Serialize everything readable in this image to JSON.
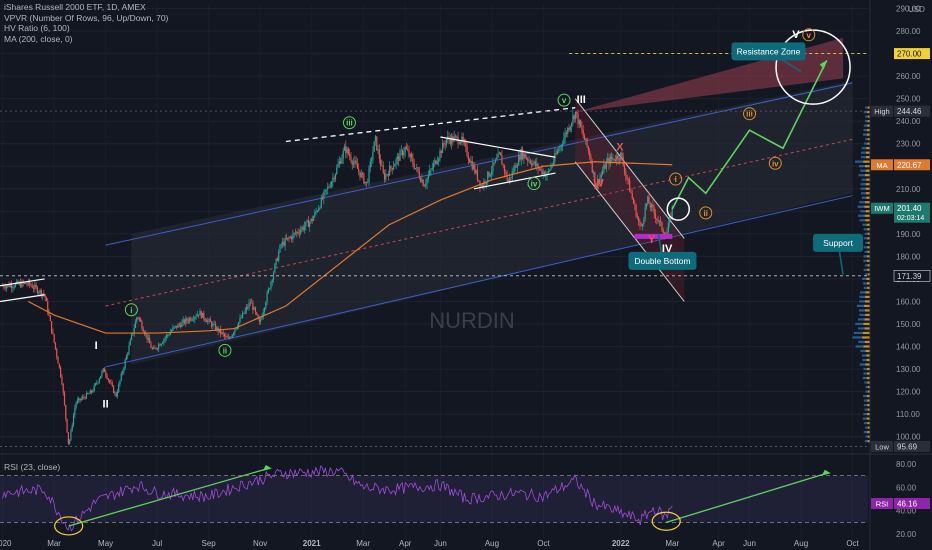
{
  "header": {
    "title": "iShares Russell 2000 ETF, 1D, AMEX",
    "indicators": [
      "VPVR (Number Of Rows, 96, Up/Down, 70)",
      "HV Ratio (6, 100)",
      "MA (200, close, 0)"
    ]
  },
  "rsi_legend": "RSI (23, close)",
  "watermark": "NURDIN",
  "currency": "USD",
  "colors": {
    "background": "#131722",
    "up": "#26a69a",
    "down": "#ef5350",
    "ma": "#e07a2e",
    "channel": "#3e5fc9",
    "rsi": "#9c4fd6",
    "arrow": "#5fd35f",
    "callout": "#0f6a7a"
  },
  "chart_data": [
    {
      "type": "candlestick",
      "title": "iShares Russell 2000 ETF, 1D, AMEX",
      "x_ticks": [
        "2020",
        "Mar",
        "May",
        "Jul",
        "Sep",
        "Nov",
        "2021",
        "Mar",
        "Apr",
        "Jun",
        "Aug",
        "Oct",
        "2022",
        "Mar",
        "Apr",
        "Jun",
        "Aug",
        "Oct"
      ],
      "y_ticks": [
        290,
        280,
        270,
        260,
        250,
        240,
        230,
        220,
        210,
        200,
        190,
        180,
        170,
        160,
        150,
        140,
        130,
        120,
        110,
        100
      ],
      "ylim": [
        95,
        292
      ],
      "price_labels": [
        {
          "text": "270.00",
          "value": 270,
          "kind": "target"
        },
        {
          "text": "High",
          "value2": "244.46",
          "value": 244.46,
          "kind": "high"
        },
        {
          "text": "MA",
          "value2": "220.67",
          "value": 220.67,
          "kind": "ma"
        },
        {
          "text": "IWM",
          "value2": "201.40",
          "sub": "02:03:14",
          "value": 201.4,
          "kind": "last"
        },
        {
          "text": "171.39",
          "value": 171.39,
          "kind": "support"
        },
        {
          "text": "Low",
          "value2": "95.69",
          "value": 95.69,
          "kind": "low"
        }
      ],
      "price_path": [
        [
          "Jan 2020",
          167
        ],
        [
          "Feb 2020",
          168
        ],
        [
          "Feb 20 2020",
          163
        ],
        [
          "Mar 10 2020",
          125
        ],
        [
          "Mar 18 2020",
          96
        ],
        [
          "Mar 26 2020",
          115
        ],
        [
          "Apr 15 2020",
          120
        ],
        [
          "Apr 29 2020",
          130
        ],
        [
          "May 13 2020",
          118
        ],
        [
          "Jun 8 2020",
          154
        ],
        [
          "Jun 26 2020",
          138
        ],
        [
          "Jul 20 2020",
          148
        ],
        [
          "Aug 20 2020",
          155
        ],
        [
          "Sep 24 2020",
          143
        ],
        [
          "Oct 20 2020",
          160
        ],
        [
          "Oct 30 2020",
          150
        ],
        [
          "Nov 25 2020",
          185
        ],
        [
          "Dec 31 2020",
          196
        ],
        [
          "Jan 26 2021",
          215
        ],
        [
          "Feb 10 2021",
          228
        ],
        [
          "Mar 5 2021",
          212
        ],
        [
          "Mar 15 2021",
          232
        ],
        [
          "Mar 25 2021",
          215
        ],
        [
          "Apr 20 2021",
          228
        ],
        [
          "May 12 2021",
          212
        ],
        [
          "Jun 8 2021",
          232
        ],
        [
          "Jun 25 2021",
          232
        ],
        [
          "Jul 19 2021",
          211
        ],
        [
          "Aug 10 2021",
          225
        ],
        [
          "Aug 20 2021",
          213
        ],
        [
          "Sep 5 2021",
          226
        ],
        [
          "Oct 5 2021",
          216
        ],
        [
          "Nov 8 2021",
          244
        ],
        [
          "Nov 25 2021",
          225
        ],
        [
          "Dec 2 2021",
          211
        ],
        [
          "Dec 15 2021",
          222
        ],
        [
          "Dec 31 2021",
          225
        ],
        [
          "Jan 24 2022",
          192
        ],
        [
          "Feb 2 2022",
          205
        ],
        [
          "Feb 24 2022",
          189
        ],
        [
          "Mar 1 2022",
          201
        ]
      ],
      "ma_path": [
        [
          "Feb 2020",
          160
        ],
        [
          "Mar 2020",
          154
        ],
        [
          "May 2020",
          146
        ],
        [
          "Jul 2020",
          146
        ],
        [
          "Sep 2020",
          147
        ],
        [
          "Oct 2020",
          148
        ],
        [
          "Dec 2020",
          158
        ],
        [
          "Feb 2021",
          176
        ],
        [
          "Apr 2021",
          194
        ],
        [
          "Jun 2021",
          205
        ],
        [
          "Aug 2021",
          214
        ],
        [
          "Oct 2021",
          220
        ],
        [
          "Dec 2021",
          222
        ],
        [
          "Mar 1 2022",
          220.67
        ]
      ],
      "projection": [
        [
          "Mar 1 2022",
          201
        ],
        [
          "Mar 20 2022",
          215
        ],
        [
          "Apr 10 2022",
          208
        ],
        [
          "Jun 1 2022",
          236
        ],
        [
          "Jul 10 2022",
          228
        ],
        [
          "Sep 1 2022",
          267
        ]
      ],
      "wave_labels": [
        {
          "text": "I",
          "x": "Apr 20 2020",
          "y": 139,
          "style": "white"
        },
        {
          "text": "II",
          "x": "May 1 2020",
          "y": 113,
          "style": "white"
        },
        {
          "text": "III",
          "x": "Nov 15 2021",
          "y": 248,
          "style": "white"
        },
        {
          "text": "IV",
          "x": "Feb 25 2022",
          "y": 182,
          "style": "white"
        },
        {
          "text": "V",
          "x": "Jul 25 2022",
          "y": 277,
          "style": "white"
        },
        {
          "text": "i",
          "x": "Jun 1 2020",
          "y": 155,
          "style": "green"
        },
        {
          "text": "ii",
          "x": "Sep 20 2020",
          "y": 137,
          "style": "green"
        },
        {
          "text": "iii",
          "x": "Feb 15 2021",
          "y": 238,
          "style": "green"
        },
        {
          "text": "iv",
          "x": "Sep 20 2021",
          "y": 211,
          "style": "green"
        },
        {
          "text": "v",
          "x": "Oct 25 2021",
          "y": 248,
          "style": "green"
        },
        {
          "text": "i",
          "x": "Mar 5 2022",
          "y": 213,
          "style": "orange"
        },
        {
          "text": "ii",
          "x": "Apr 10 2022",
          "y": 198,
          "style": "orange"
        },
        {
          "text": "iii",
          "x": "Jun 1 2022",
          "y": 242,
          "style": "orange"
        },
        {
          "text": "iv",
          "x": "Jul 1 2022",
          "y": 220,
          "style": "orange"
        },
        {
          "text": "v",
          "x": "Aug 10 2022",
          "y": 277,
          "style": "orange"
        },
        {
          "text": "W",
          "x": "Dec 5 2021",
          "y": 211,
          "style": "red"
        },
        {
          "text": "X",
          "x": "Dec 30 2021",
          "y": 227,
          "style": "red"
        },
        {
          "text": "Y",
          "x": "Feb 7 2022",
          "y": 186,
          "style": "red"
        }
      ],
      "callouts": [
        {
          "text": "Resistance Zone",
          "x": "May 10 2022",
          "y": 271
        },
        {
          "text": "Double Bottom",
          "x": "Jan 10 2022",
          "y": 178
        },
        {
          "text": "Support",
          "x": "Aug 15 2022",
          "y": 186
        }
      ]
    },
    {
      "type": "line",
      "name": "RSI (23, close)",
      "ylim": [
        15,
        85
      ],
      "y_ticks": [
        80,
        60,
        40,
        20
      ],
      "bands": [
        70,
        30
      ],
      "last_value_label": "46.16",
      "last_value": 46.16,
      "path": [
        [
          "Jan 2020",
          55
        ],
        [
          "Feb 20 2020",
          58
        ],
        [
          "Mar 18 2020",
          25
        ],
        [
          "Apr 20 2020",
          48
        ],
        [
          "Jun 8 2020",
          62
        ],
        [
          "Jul 2020",
          55
        ],
        [
          "Sep 2020",
          52
        ],
        [
          "Oct 2020",
          60
        ],
        [
          "Nov 25 2020",
          72
        ],
        [
          "Jan 2021",
          73
        ],
        [
          "Feb 2021",
          74
        ],
        [
          "Mar 2021",
          60
        ],
        [
          "Apr 2021",
          58
        ],
        [
          "Jun 2021",
          62
        ],
        [
          "Jul 2021",
          50
        ],
        [
          "Sep 2021",
          55
        ],
        [
          "Oct 2021",
          52
        ],
        [
          "Nov 8 2021",
          66
        ],
        [
          "Dec 2021",
          46
        ],
        [
          "Jan 24 2022",
          32
        ],
        [
          "Feb 10 2022",
          42
        ],
        [
          "Feb 24 2022",
          34
        ],
        [
          "Mar 1 2022",
          46.16
        ]
      ]
    }
  ]
}
